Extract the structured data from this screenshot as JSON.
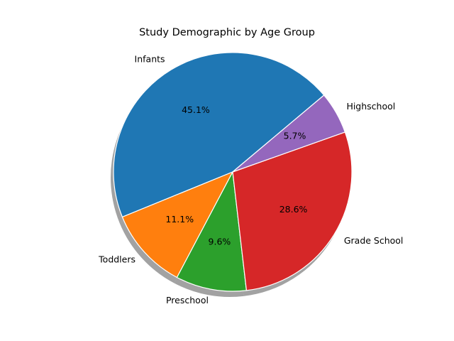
{
  "chart_data": {
    "type": "pie",
    "title": "Study Demographic by Age Group",
    "categories": [
      "Infants",
      "Toddlers",
      "Preschool",
      "Grade School",
      "Highschool"
    ],
    "values": [
      45.1,
      11.1,
      9.6,
      28.6,
      5.7
    ],
    "value_labels": [
      "45.1%",
      "11.1%",
      "9.6%",
      "28.6%",
      "5.7%"
    ],
    "colors": [
      "#1f77b4",
      "#ff7f0e",
      "#2ca02c",
      "#d62728",
      "#9467bd"
    ],
    "start_angle_deg": 40,
    "direction": "counterclockwise",
    "shadow": true,
    "edge_color": "#ffffff",
    "legend": "none"
  }
}
